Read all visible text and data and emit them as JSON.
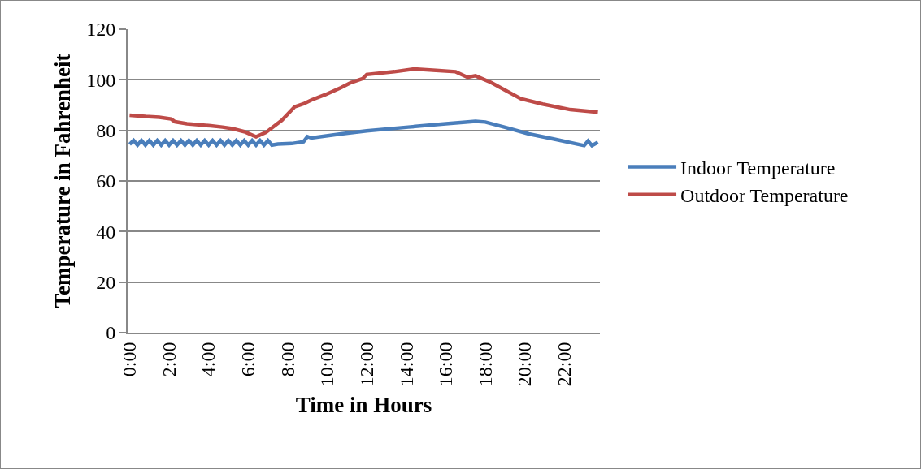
{
  "chart_data": {
    "type": "line",
    "xlabel": "Time in Hours",
    "ylabel": "Temperature in Fahrenheit",
    "xlim": [
      -0.1,
      23.8
    ],
    "ylim": [
      0,
      120
    ],
    "yticks": [
      0,
      20,
      40,
      60,
      80,
      100,
      120
    ],
    "xticks": [
      {
        "value": 0,
        "label": "0:00"
      },
      {
        "value": 2,
        "label": "2:00"
      },
      {
        "value": 4,
        "label": "4:00"
      },
      {
        "value": 6,
        "label": "6:00"
      },
      {
        "value": 8,
        "label": "8:00"
      },
      {
        "value": 10,
        "label": "10:00"
      },
      {
        "value": 12,
        "label": "12:00"
      },
      {
        "value": 14,
        "label": "14:00"
      },
      {
        "value": 16,
        "label": "16:00"
      },
      {
        "value": 18,
        "label": "18:00"
      },
      {
        "value": 20,
        "label": "20:00"
      },
      {
        "value": 22,
        "label": "22:00"
      }
    ],
    "grid": "y",
    "legend": "right",
    "marker": "none",
    "line_style": "solid",
    "series": [
      {
        "name": "Indoor Temperature",
        "color": "#4a7ebb",
        "x": [
          0,
          0.2,
          0.4,
          0.6,
          0.8,
          1,
          1.2,
          1.4,
          1.6,
          1.8,
          2,
          2.2,
          2.4,
          2.6,
          2.8,
          3,
          3.2,
          3.4,
          3.6,
          3.8,
          4,
          4.2,
          4.4,
          4.6,
          4.8,
          5,
          5.2,
          5.4,
          5.6,
          5.8,
          6,
          6.2,
          6.4,
          6.6,
          6.8,
          7,
          7.2,
          7.5,
          8.2,
          8.8,
          9,
          9.2,
          10.7,
          12,
          14.1,
          16,
          17.5,
          18,
          19,
          20.2,
          21.5,
          23,
          23.2,
          23.4,
          23.7
        ],
        "values": [
          74.5,
          76,
          74.2,
          76,
          74.2,
          76,
          74.2,
          76,
          74.2,
          76,
          74.2,
          76,
          74.2,
          76,
          74.2,
          76,
          74.2,
          76,
          74.2,
          76,
          74.2,
          76,
          74.2,
          76,
          74.2,
          76,
          74.2,
          76,
          74.2,
          76,
          74.2,
          76,
          74.2,
          76,
          74.2,
          76,
          74.2,
          74.6,
          74.8,
          75.5,
          77.5,
          77,
          78.6,
          79.8,
          81.3,
          82.6,
          83.6,
          83.3,
          81.2,
          78.6,
          76.5,
          74,
          75.8,
          74,
          75.3
        ]
      },
      {
        "name": "Outdoor Temperature",
        "color": "#be4b48",
        "x": [
          0,
          0.8,
          1.5,
          2.1,
          2.3,
          2.9,
          4.1,
          4.7,
          5.2,
          5.8,
          6.4,
          6.9,
          7.7,
          8.35,
          8.8,
          9.2,
          9.9,
          10.7,
          11.2,
          11.8,
          12,
          13.4,
          14.4,
          15.5,
          16.5,
          17.1,
          17.5,
          18.3,
          19.8,
          20.9,
          22.3,
          23.7
        ],
        "values": [
          86,
          85.5,
          85.2,
          84.5,
          83.4,
          82.6,
          81.8,
          81.3,
          80.7,
          79.5,
          77.5,
          79.2,
          84,
          89.3,
          90.5,
          92,
          94.1,
          96.9,
          98.9,
          100.5,
          102.1,
          103.2,
          104.3,
          103.7,
          103.2,
          101,
          101.6,
          98.9,
          92.5,
          90.4,
          88.2,
          87.2
        ]
      }
    ]
  }
}
